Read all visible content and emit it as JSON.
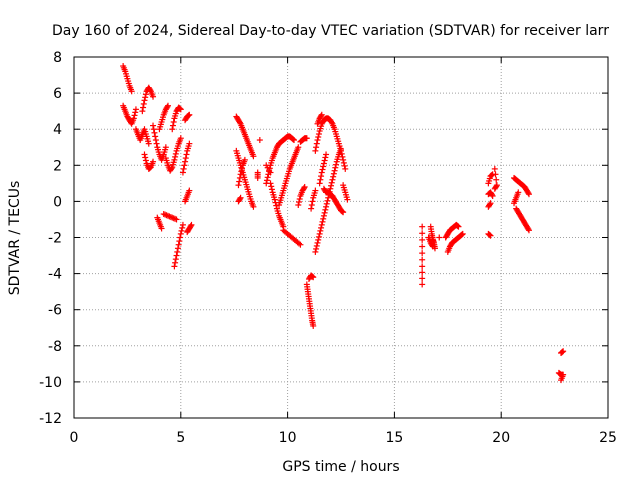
{
  "chart_data": {
    "type": "scatter",
    "title": "Day 160 of 2024, Sidereal Day-to-day VTEC variation (SDTVAR) for receiver larr",
    "xlabel": "GPS time / hours",
    "ylabel": "SDTVAR / TECUs",
    "xlim": [
      0,
      25
    ],
    "ylim": [
      -12,
      8
    ],
    "xticks": [
      0,
      5,
      10,
      15,
      20,
      25
    ],
    "yticks": [
      -12,
      -10,
      -8,
      -6,
      -4,
      -2,
      0,
      2,
      4,
      6,
      8
    ],
    "grid": true,
    "marker": "plus",
    "color": "#ff0000",
    "segments": [
      [
        [
          2.3,
          7.5
        ],
        [
          2.4,
          7.2
        ],
        [
          2.5,
          6.8
        ],
        [
          2.6,
          6.4
        ],
        [
          2.7,
          6.1
        ]
      ],
      [
        [
          2.3,
          5.3
        ],
        [
          2.4,
          5.0
        ],
        [
          2.5,
          4.7
        ],
        [
          2.6,
          4.5
        ],
        [
          2.7,
          4.3
        ],
        [
          2.8,
          4.6
        ],
        [
          2.9,
          5.1
        ]
      ],
      [
        [
          2.9,
          4.0
        ],
        [
          3.0,
          3.7
        ],
        [
          3.1,
          3.4
        ],
        [
          3.2,
          3.7
        ],
        [
          3.3,
          4.0
        ],
        [
          3.4,
          3.6
        ],
        [
          3.5,
          3.2
        ]
      ],
      [
        [
          3.2,
          5.0
        ],
        [
          3.3,
          5.6
        ],
        [
          3.4,
          6.1
        ],
        [
          3.5,
          6.3
        ],
        [
          3.6,
          6.1
        ],
        [
          3.7,
          5.8
        ]
      ],
      [
        [
          3.3,
          2.6
        ],
        [
          3.4,
          2.1
        ],
        [
          3.5,
          1.8
        ],
        [
          3.6,
          1.9
        ],
        [
          3.7,
          2.2
        ]
      ],
      [
        [
          3.7,
          4.2
        ],
        [
          3.8,
          3.6
        ],
        [
          3.9,
          3.0
        ],
        [
          4.0,
          2.6
        ],
        [
          4.1,
          2.3
        ],
        [
          4.2,
          2.6
        ],
        [
          4.3,
          3.0
        ]
      ],
      [
        [
          4.0,
          4.0
        ],
        [
          4.1,
          4.4
        ],
        [
          4.2,
          4.8
        ],
        [
          4.3,
          5.1
        ],
        [
          4.4,
          5.3
        ]
      ],
      [
        [
          4.3,
          2.4
        ],
        [
          4.4,
          2.0
        ],
        [
          4.5,
          1.7
        ],
        [
          4.6,
          1.9
        ],
        [
          4.7,
          2.3
        ],
        [
          4.8,
          2.8
        ],
        [
          4.9,
          3.2
        ],
        [
          5.0,
          3.5
        ]
      ],
      [
        [
          4.6,
          4.0
        ],
        [
          4.7,
          4.6
        ],
        [
          4.8,
          5.0
        ],
        [
          4.9,
          5.2
        ],
        [
          5.0,
          5.1
        ]
      ],
      [
        [
          3.9,
          -0.9
        ],
        [
          4.0,
          -1.2
        ],
        [
          4.1,
          -1.5
        ]
      ],
      [
        [
          4.2,
          -0.7
        ],
        [
          4.4,
          -0.8
        ],
        [
          4.6,
          -0.9
        ],
        [
          4.8,
          -1.0
        ]
      ],
      [
        [
          4.7,
          -3.6
        ],
        [
          4.8,
          -3.0
        ],
        [
          4.9,
          -2.4
        ],
        [
          5.0,
          -1.8
        ],
        [
          5.1,
          -1.3
        ]
      ],
      [
        [
          5.1,
          1.6
        ],
        [
          5.2,
          2.2
        ],
        [
          5.3,
          2.8
        ],
        [
          5.4,
          3.2
        ]
      ],
      [
        [
          5.2,
          4.5
        ],
        [
          5.3,
          4.7
        ],
        [
          5.4,
          4.8
        ]
      ],
      [
        [
          5.2,
          0.0
        ],
        [
          5.3,
          0.3
        ],
        [
          5.4,
          0.6
        ]
      ],
      [
        [
          5.3,
          -1.7
        ],
        [
          5.4,
          -1.5
        ],
        [
          5.5,
          -1.3
        ]
      ],
      [
        [
          7.6,
          4.7
        ],
        [
          7.7,
          4.5
        ],
        [
          7.8,
          4.3
        ],
        [
          7.9,
          4.0
        ],
        [
          8.0,
          3.7
        ],
        [
          8.1,
          3.4
        ],
        [
          8.2,
          3.1
        ],
        [
          8.3,
          2.8
        ],
        [
          8.4,
          2.5
        ]
      ],
      [
        [
          7.6,
          2.8
        ],
        [
          7.7,
          2.4
        ],
        [
          7.8,
          2.0
        ],
        [
          7.9,
          1.6
        ],
        [
          8.0,
          1.2
        ],
        [
          8.1,
          0.8
        ],
        [
          8.2,
          0.4
        ],
        [
          8.3,
          0.0
        ],
        [
          8.4,
          -0.3
        ]
      ],
      [
        [
          7.7,
          0.9
        ],
        [
          7.8,
          1.5
        ],
        [
          7.9,
          2.0
        ],
        [
          8.0,
          2.3
        ]
      ],
      [
        [
          7.7,
          0.0
        ],
        [
          7.8,
          0.2
        ]
      ],
      [
        [
          8.6,
          1.6
        ],
        [
          8.6,
          1.3
        ]
      ],
      [
        [
          8.7,
          3.4
        ]
      ],
      [
        [
          9.0,
          2.0
        ],
        [
          9.2,
          1.6
        ]
      ],
      [
        [
          9.2,
          1.0
        ],
        [
          9.3,
          0.5
        ],
        [
          9.4,
          0.1
        ],
        [
          9.5,
          -0.4
        ],
        [
          9.6,
          -0.8
        ],
        [
          9.7,
          -1.1
        ],
        [
          9.8,
          -1.4
        ]
      ],
      [
        [
          9.8,
          -1.6
        ],
        [
          10.0,
          -1.8
        ],
        [
          10.2,
          -2.0
        ],
        [
          10.4,
          -2.2
        ],
        [
          10.6,
          -2.4
        ]
      ],
      [
        [
          9.0,
          1.0
        ],
        [
          9.1,
          1.5
        ],
        [
          9.2,
          2.0
        ],
        [
          9.3,
          2.4
        ],
        [
          9.4,
          2.7
        ],
        [
          9.5,
          3.0
        ],
        [
          9.6,
          3.2
        ],
        [
          9.7,
          3.3
        ],
        [
          9.8,
          3.4
        ],
        [
          9.9,
          3.5
        ],
        [
          10.0,
          3.6
        ],
        [
          10.1,
          3.6
        ],
        [
          10.2,
          3.5
        ],
        [
          10.3,
          3.4
        ]
      ],
      [
        [
          10.6,
          3.3
        ],
        [
          10.7,
          3.4
        ],
        [
          10.8,
          3.5
        ],
        [
          10.9,
          3.5
        ]
      ],
      [
        [
          9.6,
          -0.2
        ],
        [
          9.7,
          0.2
        ],
        [
          9.8,
          0.6
        ],
        [
          9.9,
          1.0
        ],
        [
          10.0,
          1.4
        ],
        [
          10.1,
          1.8
        ],
        [
          10.2,
          2.1
        ],
        [
          10.3,
          2.4
        ],
        [
          10.4,
          2.7
        ],
        [
          10.5,
          3.0
        ]
      ],
      [
        [
          10.5,
          -0.2
        ],
        [
          10.6,
          0.3
        ],
        [
          10.7,
          0.6
        ],
        [
          10.8,
          0.8
        ]
      ],
      [
        [
          11.0,
          -4.3
        ],
        [
          11.1,
          -4.1
        ],
        [
          11.2,
          -4.2
        ]
      ],
      [
        [
          10.9,
          -4.6
        ],
        [
          10.95,
          -5.0
        ],
        [
          11.0,
          -5.4
        ],
        [
          11.05,
          -5.8
        ],
        [
          11.1,
          -6.2
        ],
        [
          11.15,
          -6.6
        ],
        [
          11.2,
          -6.9
        ]
      ],
      [
        [
          11.1,
          -0.4
        ],
        [
          11.2,
          0.2
        ],
        [
          11.3,
          0.6
        ]
      ],
      [
        [
          11.3,
          2.8
        ],
        [
          11.4,
          3.4
        ],
        [
          11.5,
          3.9
        ],
        [
          11.6,
          4.3
        ],
        [
          11.7,
          4.5
        ],
        [
          11.8,
          4.6
        ],
        [
          11.9,
          4.6
        ],
        [
          12.0,
          4.5
        ],
        [
          12.1,
          4.3
        ],
        [
          12.2,
          4.0
        ],
        [
          12.3,
          3.6
        ],
        [
          12.4,
          3.2
        ],
        [
          12.5,
          2.8
        ],
        [
          12.6,
          2.3
        ],
        [
          12.7,
          1.8
        ]
      ],
      [
        [
          11.4,
          4.3
        ],
        [
          11.5,
          4.6
        ],
        [
          11.6,
          4.8
        ]
      ],
      [
        [
          11.3,
          -2.8
        ],
        [
          11.4,
          -2.3
        ],
        [
          11.5,
          -1.8
        ],
        [
          11.6,
          -1.3
        ],
        [
          11.7,
          -0.8
        ],
        [
          11.8,
          -0.3
        ],
        [
          11.9,
          0.2
        ],
        [
          12.0,
          0.7
        ],
        [
          12.1,
          1.2
        ],
        [
          12.2,
          1.7
        ],
        [
          12.3,
          2.2
        ],
        [
          12.4,
          2.6
        ],
        [
          12.5,
          2.9
        ]
      ],
      [
        [
          11.5,
          1.0
        ],
        [
          11.6,
          1.6
        ],
        [
          11.7,
          2.1
        ],
        [
          11.8,
          2.6
        ]
      ],
      [
        [
          11.7,
          0.7
        ],
        [
          11.8,
          0.5
        ],
        [
          11.9,
          0.5
        ],
        [
          12.0,
          0.4
        ],
        [
          12.1,
          0.3
        ],
        [
          12.2,
          0.1
        ],
        [
          12.3,
          -0.1
        ],
        [
          12.4,
          -0.3
        ],
        [
          12.5,
          -0.5
        ],
        [
          12.6,
          -0.6
        ]
      ],
      [
        [
          12.6,
          0.9
        ],
        [
          12.7,
          0.5
        ],
        [
          12.8,
          0.1
        ]
      ],
      [
        [
          16.3,
          -1.4
        ],
        [
          16.3,
          -2.5
        ],
        [
          16.3,
          -3.6
        ],
        [
          16.3,
          -4.6
        ]
      ],
      [
        [
          16.7,
          -1.4
        ],
        [
          16.75,
          -1.8
        ],
        [
          16.8,
          -2.1
        ],
        [
          16.85,
          -2.3
        ],
        [
          16.9,
          -2.6
        ]
      ],
      [
        [
          16.6,
          -2.0
        ],
        [
          16.7,
          -2.3
        ],
        [
          16.8,
          -2.5
        ]
      ],
      [
        [
          17.1,
          -2.0
        ]
      ],
      [
        [
          17.4,
          -2.0
        ],
        [
          17.5,
          -1.8
        ],
        [
          17.6,
          -1.6
        ],
        [
          17.7,
          -1.5
        ],
        [
          17.8,
          -1.4
        ],
        [
          17.9,
          -1.3
        ],
        [
          18.0,
          -1.4
        ]
      ],
      [
        [
          17.5,
          -2.8
        ],
        [
          17.6,
          -2.5
        ],
        [
          17.7,
          -2.3
        ],
        [
          17.8,
          -2.2
        ],
        [
          17.9,
          -2.1
        ],
        [
          18.0,
          -2.0
        ],
        [
          18.1,
          -1.9
        ],
        [
          18.2,
          -1.8
        ]
      ],
      [
        [
          19.4,
          -0.3
        ],
        [
          19.5,
          -0.1
        ]
      ],
      [
        [
          19.4,
          -1.8
        ],
        [
          19.5,
          -1.9
        ]
      ],
      [
        [
          19.4,
          1.0
        ],
        [
          19.5,
          1.4
        ],
        [
          19.6,
          1.5
        ]
      ],
      [
        [
          19.4,
          0.4
        ],
        [
          19.5,
          0.5
        ],
        [
          19.6,
          0.3
        ]
      ],
      [
        [
          19.7,
          0.7
        ],
        [
          19.8,
          0.9
        ],
        [
          19.7,
          1.8
        ]
      ],
      [
        [
          20.6,
          1.3
        ],
        [
          20.7,
          1.2
        ],
        [
          20.8,
          1.1
        ],
        [
          20.9,
          1.0
        ],
        [
          21.0,
          0.9
        ],
        [
          21.1,
          0.8
        ],
        [
          21.2,
          0.6
        ],
        [
          21.3,
          0.4
        ]
      ],
      [
        [
          20.7,
          -0.4
        ],
        [
          20.8,
          -0.6
        ],
        [
          20.9,
          -0.8
        ],
        [
          21.0,
          -1.0
        ],
        [
          21.1,
          -1.2
        ],
        [
          21.2,
          -1.4
        ],
        [
          21.3,
          -1.6
        ]
      ],
      [
        [
          20.6,
          -0.1
        ],
        [
          20.7,
          0.2
        ],
        [
          20.8,
          0.5
        ]
      ],
      [
        [
          22.8,
          -8.4
        ],
        [
          22.9,
          -8.3
        ]
      ],
      [
        [
          22.7,
          -9.5
        ],
        [
          22.8,
          -9.6
        ],
        [
          22.9,
          -9.6
        ],
        [
          22.8,
          -9.9
        ]
      ]
    ]
  }
}
